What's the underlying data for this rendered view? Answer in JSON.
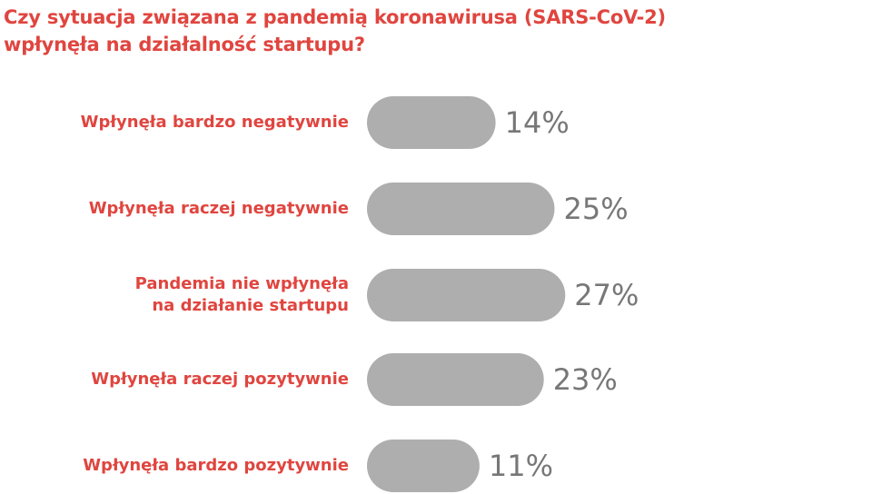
{
  "chart_data": {
    "type": "bar",
    "orientation": "horizontal",
    "title": "Czy sytuacja związana z pandemią koronawirusa (SARS-CoV-2)\nwpłynęła na działalność startupu?",
    "categories": [
      "Wpłynęła bardzo negatywnie",
      "Wpłynęła raczej negatywnie",
      "Pandemia nie wpłynęła\nna działanie startupu",
      "Wpłynęła raczej pozytywnie",
      "Wpłynęła bardzo pozytywnie"
    ],
    "values": [
      14,
      25,
      27,
      23,
      11
    ],
    "value_labels": [
      "14%",
      "25%",
      "27%",
      "23%",
      "11%"
    ],
    "color": "#aeaeae"
  }
}
